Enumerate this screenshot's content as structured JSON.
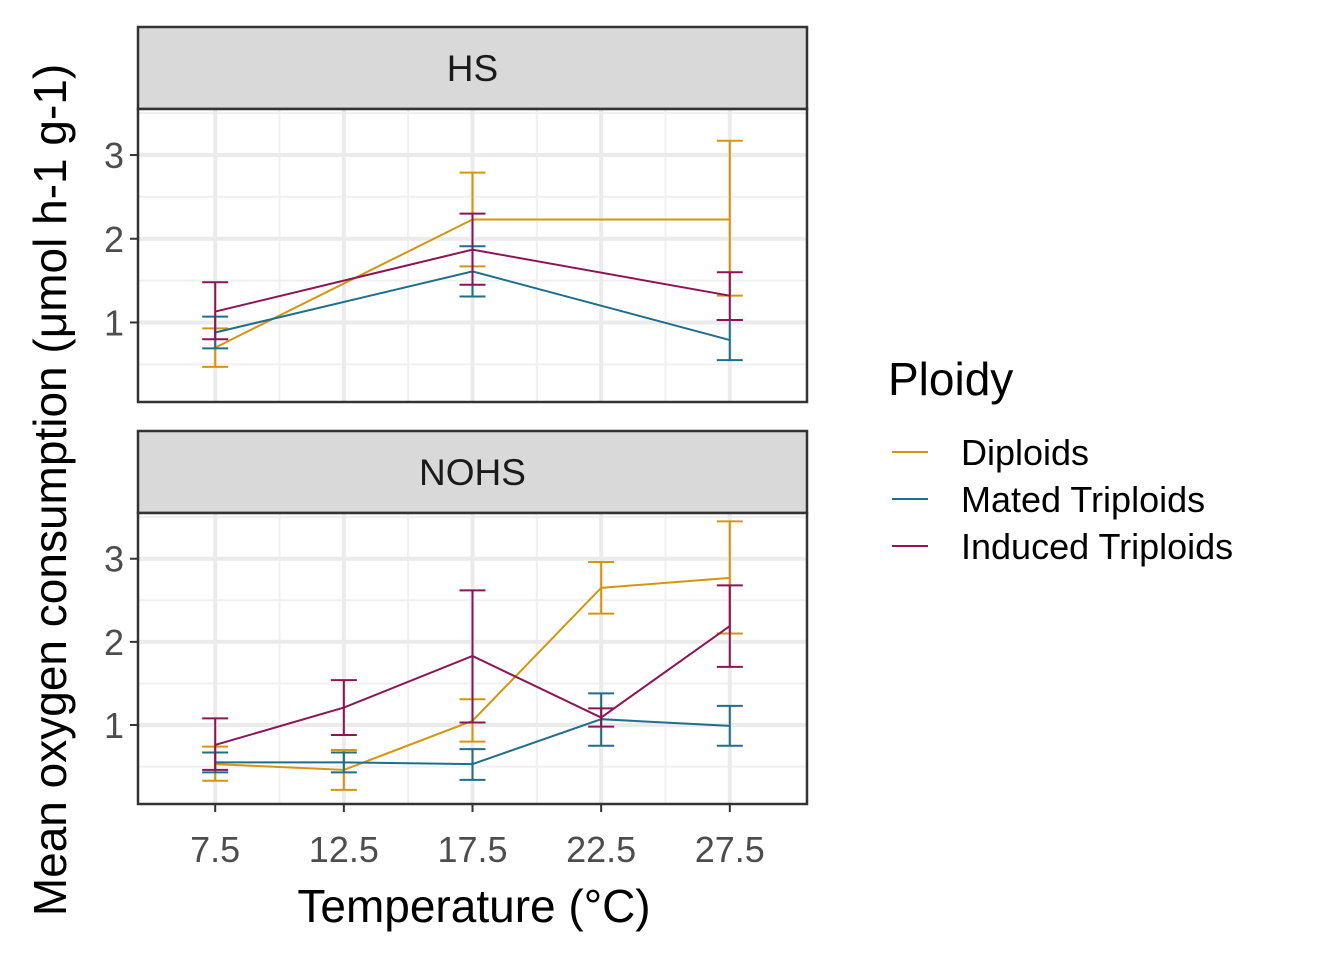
{
  "chart_data": {
    "type": "line",
    "xlabel": "Temperature (°C)",
    "ylabel": "Mean oxygen consumption (μmol h-1 g-1)",
    "x_ticks": [
      "7.5",
      "12.5",
      "17.5",
      "22.5",
      "27.5"
    ],
    "y_ticks": [
      "1",
      "2",
      "3"
    ],
    "xlim": [
      4.5,
      30.5
    ],
    "ylim": [
      0.05,
      3.55
    ],
    "grid": true,
    "error_bars": true,
    "legend": {
      "title": "Ploidy",
      "position": "right",
      "entries": [
        {
          "name": "Diploids",
          "color": "#D4960F"
        },
        {
          "name": "Mated Triploids",
          "color": "#1F6E8C"
        },
        {
          "name": "Induced Triploids",
          "color": "#8C1558"
        }
      ]
    },
    "panels": [
      {
        "strip": "HS",
        "series": [
          {
            "name": "Diploids",
            "color": "#D4960F",
            "points": [
              {
                "x": 7.5,
                "y": 0.7,
                "lo": 0.47,
                "hi": 0.93
              },
              {
                "x": 17.5,
                "y": 2.23,
                "lo": 1.67,
                "hi": 2.79
              },
              {
                "x": 27.5,
                "y": 2.23,
                "lo": 1.32,
                "hi": 3.17
              }
            ]
          },
          {
            "name": "Mated Triploids",
            "color": "#1F6E8C",
            "points": [
              {
                "x": 7.5,
                "y": 0.88,
                "lo": 0.69,
                "hi": 1.07
              },
              {
                "x": 17.5,
                "y": 1.61,
                "lo": 1.31,
                "hi": 1.91
              },
              {
                "x": 27.5,
                "y": 0.79,
                "lo": 0.55,
                "hi": 1.03
              }
            ]
          },
          {
            "name": "Induced Triploids",
            "color": "#8C1558",
            "points": [
              {
                "x": 7.5,
                "y": 1.13,
                "lo": 0.8,
                "hi": 1.48
              },
              {
                "x": 17.5,
                "y": 1.87,
                "lo": 1.45,
                "hi": 2.3
              },
              {
                "x": 27.5,
                "y": 1.32,
                "lo": 1.03,
                "hi": 1.6
              }
            ]
          }
        ]
      },
      {
        "strip": "NOHS",
        "series": [
          {
            "name": "Diploids",
            "color": "#D4960F",
            "points": [
              {
                "x": 7.5,
                "y": 0.53,
                "lo": 0.33,
                "hi": 0.74
              },
              {
                "x": 12.5,
                "y": 0.46,
                "lo": 0.22,
                "hi": 0.7
              },
              {
                "x": 17.5,
                "y": 1.05,
                "lo": 0.8,
                "hi": 1.31
              },
              {
                "x": 22.5,
                "y": 2.65,
                "lo": 2.34,
                "hi": 2.96
              },
              {
                "x": 27.5,
                "y": 2.77,
                "lo": 2.1,
                "hi": 3.45
              }
            ]
          },
          {
            "name": "Mated Triploids",
            "color": "#1F6E8C",
            "points": [
              {
                "x": 7.5,
                "y": 0.55,
                "lo": 0.43,
                "hi": 0.67
              },
              {
                "x": 12.5,
                "y": 0.55,
                "lo": 0.43,
                "hi": 0.67
              },
              {
                "x": 17.5,
                "y": 0.53,
                "lo": 0.34,
                "hi": 0.71
              },
              {
                "x": 22.5,
                "y": 1.07,
                "lo": 0.75,
                "hi": 1.38
              },
              {
                "x": 27.5,
                "y": 0.99,
                "lo": 0.75,
                "hi": 1.23
              }
            ]
          },
          {
            "name": "Induced Triploids",
            "color": "#8C1558",
            "points": [
              {
                "x": 7.5,
                "y": 0.76,
                "lo": 0.46,
                "hi": 1.08
              },
              {
                "x": 12.5,
                "y": 1.21,
                "lo": 0.88,
                "hi": 1.54
              },
              {
                "x": 17.5,
                "y": 1.83,
                "lo": 1.03,
                "hi": 2.62
              },
              {
                "x": 22.5,
                "y": 1.09,
                "lo": 0.98,
                "hi": 1.2
              },
              {
                "x": 27.5,
                "y": 2.19,
                "lo": 1.7,
                "hi": 2.68
              }
            ]
          }
        ]
      }
    ]
  }
}
